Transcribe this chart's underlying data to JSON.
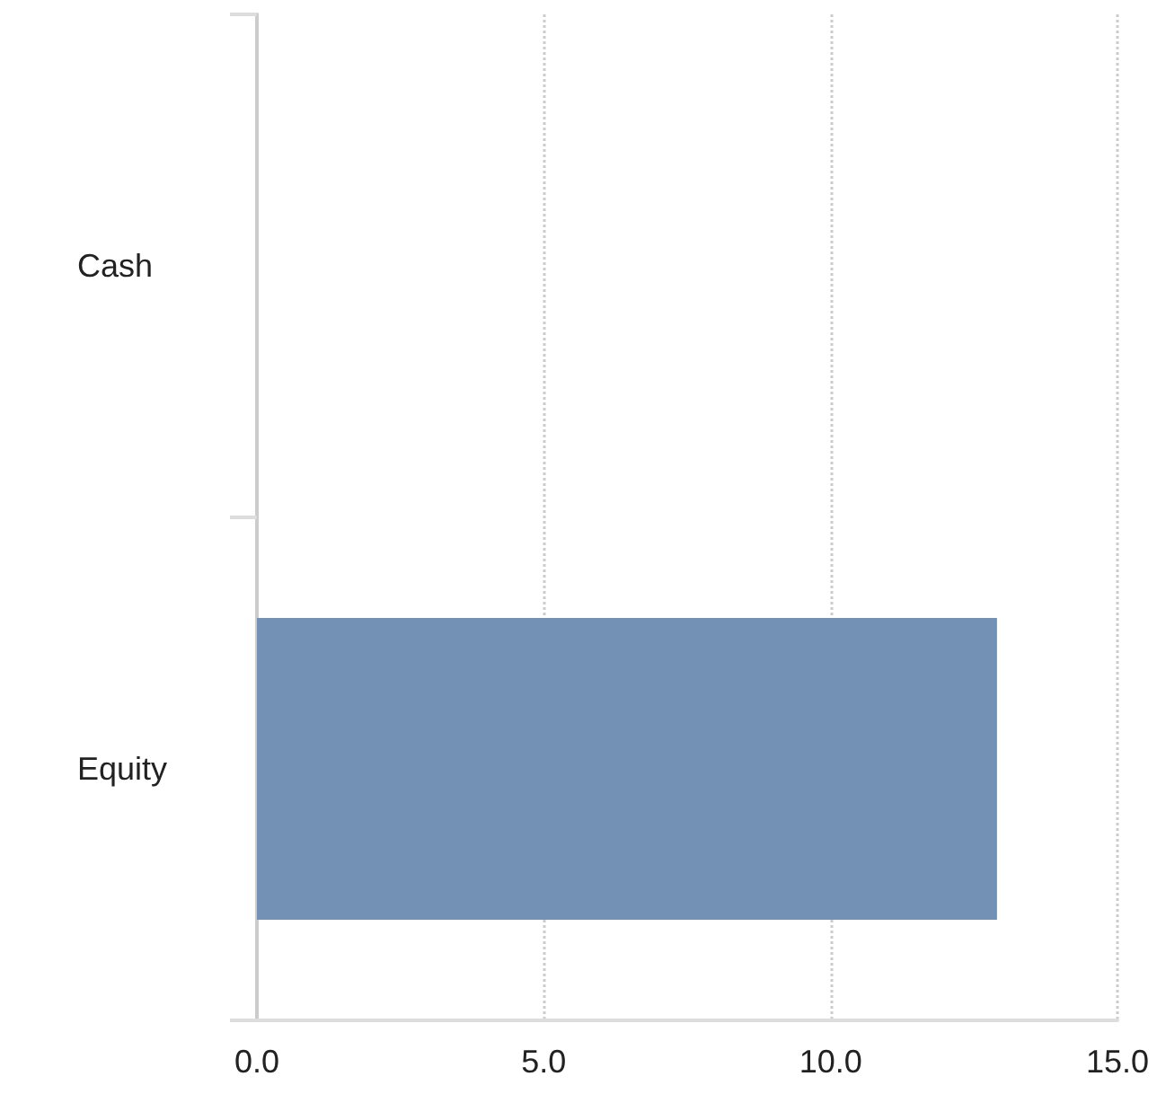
{
  "chart_data": {
    "type": "bar",
    "orientation": "horizontal",
    "categories": [
      "Cash",
      "Equity"
    ],
    "series": [
      {
        "color": "#7390b5",
        "values": [
          0,
          12.9
        ]
      }
    ],
    "xlim": [
      0,
      15
    ],
    "xticks": [
      {
        "value": 0,
        "label": "0.0"
      },
      {
        "value": 5,
        "label": "5.0"
      },
      {
        "value": 10,
        "label": "10.0"
      },
      {
        "value": 15,
        "label": "15.0"
      }
    ],
    "grid": "x"
  }
}
